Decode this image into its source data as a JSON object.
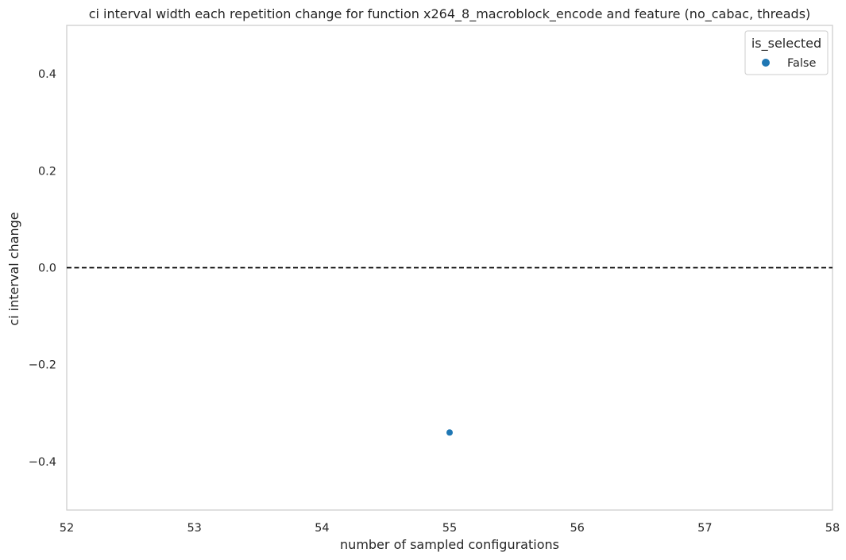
{
  "chart_data": {
    "type": "scatter",
    "title": "ci interval width each repetition change for function x264_8_macroblock_encode and feature (no_cabac, threads)",
    "xlabel": "number of sampled configurations",
    "ylabel": "ci interval change",
    "xlim": [
      52,
      58
    ],
    "ylim": [
      -0.5,
      0.5
    ],
    "xticks": [
      52,
      53,
      54,
      55,
      56,
      57,
      58
    ],
    "yticks": [
      -0.4,
      -0.2,
      0.0,
      0.2,
      0.4
    ],
    "ytick_labels": [
      "−0.4",
      "−0.2",
      "0.0",
      "0.2",
      "0.4"
    ],
    "grid": false,
    "reference_line": {
      "y": 0.0,
      "style": "dashed",
      "color": "#000000"
    },
    "legend": {
      "title": "is_selected",
      "placement": "top-right",
      "entries": [
        {
          "label": "False",
          "color": "#1f77b4"
        }
      ]
    },
    "series": [
      {
        "name": "False",
        "color": "#1f77b4",
        "points": [
          {
            "x": 55,
            "y": -0.34
          }
        ]
      }
    ]
  }
}
